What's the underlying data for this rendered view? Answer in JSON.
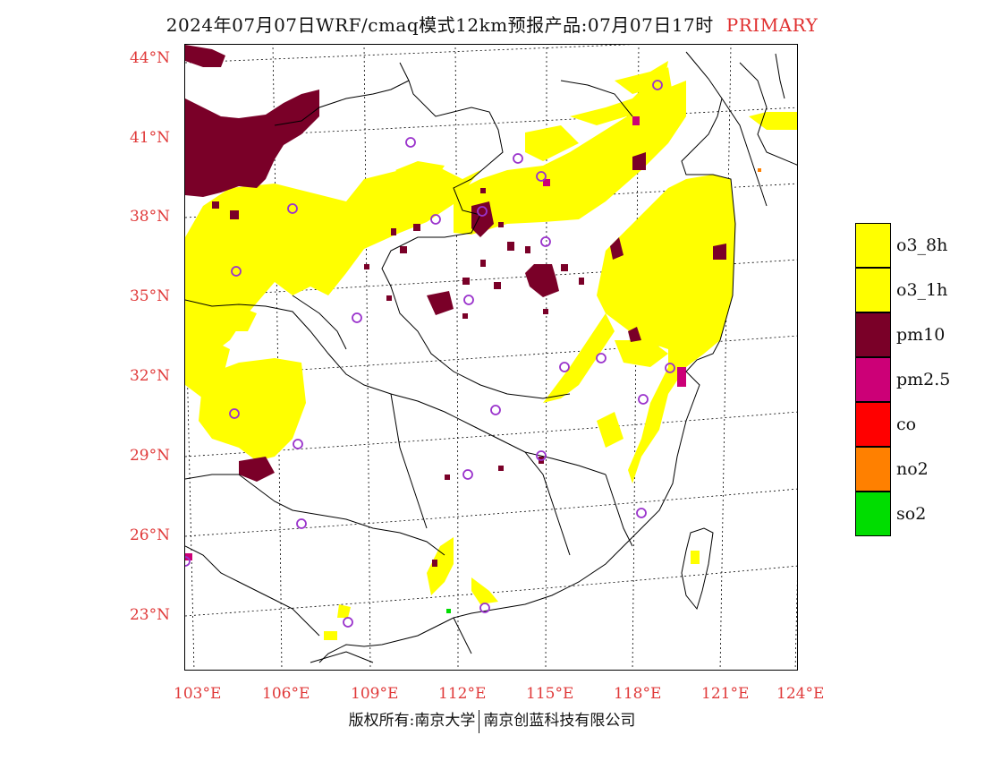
{
  "title": {
    "main": "2024年07月07日WRF/cmaq模式12km预报产品:07月07日17时",
    "tag": "PRIMARY"
  },
  "axes": {
    "latitude_labels": [
      "44°N",
      "41°N",
      "38°N",
      "35°N",
      "32°N",
      "29°N",
      "26°N",
      "23°N"
    ],
    "longitude_labels": [
      "103°E",
      "106°E",
      "109°E",
      "112°E",
      "115°E",
      "118°E",
      "121°E",
      "124°E"
    ]
  },
  "legend": {
    "items": [
      {
        "label": "o3_8h",
        "color": "#ffff00"
      },
      {
        "label": "o3_1h",
        "color": "#ffff00"
      },
      {
        "label": "pm10",
        "color": "#7a0028"
      },
      {
        "label": "pm2.5",
        "color": "#cc0077"
      },
      {
        "label": "co",
        "color": "#ff0000"
      },
      {
        "label": "no2",
        "color": "#ff8000"
      },
      {
        "label": "so2",
        "color": "#00dd00"
      }
    ]
  },
  "colors": {
    "o3": "#ffff00",
    "pm10": "#7a0028",
    "pm25": "#cc0077",
    "station": "#9a33cc",
    "axis_text": "#e03a3a"
  },
  "copyright": {
    "left": "版权所有:南京大学",
    "right": "南京创蓝科技有限公司"
  }
}
